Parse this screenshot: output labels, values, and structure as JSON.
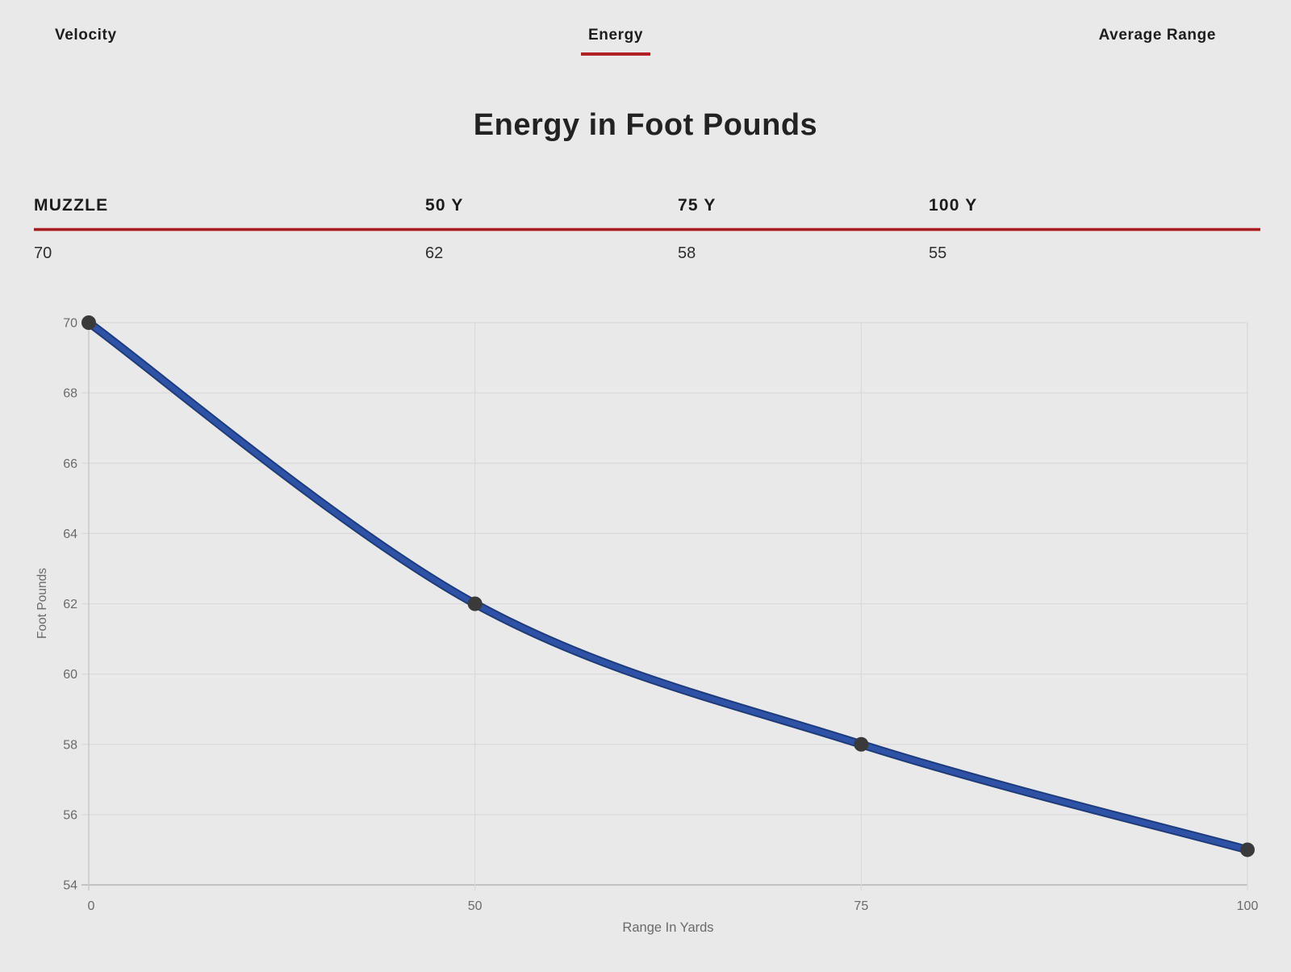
{
  "tabs": {
    "velocity": "Velocity",
    "energy": "Energy",
    "average_range": "Average Range",
    "active": "Energy"
  },
  "title": "Energy in Foot Pounds",
  "summary_table": {
    "columns": [
      {
        "label": "MUZZLE",
        "value": "70"
      },
      {
        "label": "50 Y",
        "value": "62"
      },
      {
        "label": "75 Y",
        "value": "58"
      },
      {
        "label": "100 Y",
        "value": "55"
      }
    ]
  },
  "chart_data": {
    "type": "line",
    "categories": [
      "0",
      "50",
      "75",
      "100"
    ],
    "values": [
      70,
      62,
      58,
      55
    ],
    "title": "Energy in Foot Pounds",
    "xlabel": "Range In Yards",
    "ylabel": "Foot Pounds",
    "ylim": [
      54,
      70
    ],
    "y_ticks": [
      54,
      56,
      58,
      60,
      62,
      64,
      66,
      68,
      70
    ],
    "x_spacing": "even-categorical",
    "grid": true,
    "legend": "none"
  },
  "colors": {
    "accent_red": "#b02126",
    "line_blue_outer": "#1e3b7a",
    "line_blue_inner": "#2e52a5",
    "marker": "#3a3a3a",
    "grid": "#d9d9d9",
    "axis": "#c2c2c2",
    "axis_left": "#c9c9c9",
    "tick_text": "#6a6a6a",
    "background": "#e9e9e9"
  }
}
